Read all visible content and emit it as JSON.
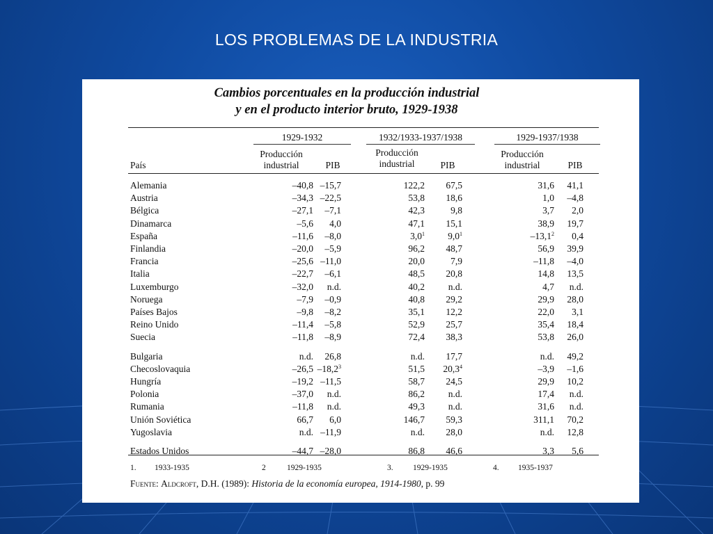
{
  "slide": {
    "title": "LOS PROBLEMAS DE LA INDUSTRIA"
  },
  "table": {
    "caption_line1": "Cambios porcentuales en la producción industrial",
    "caption_line2": "y en el producto interior bruto, 1929-1938",
    "groups": [
      "1929-1932",
      "1932/1933-1937/1938",
      "1929-1937/1938"
    ],
    "col_pais": "País",
    "col_prod_line1": "Producción",
    "col_prod_line2": "industrial",
    "col_pib": "PIB",
    "rows": [
      {
        "country": "Alemania",
        "v": [
          "–40,8",
          "–15,7",
          "122,2",
          "67,5",
          "31,6",
          "41,1"
        ],
        "s": [
          "",
          "",
          "",
          "",
          "",
          ""
        ]
      },
      {
        "country": "Austria",
        "v": [
          "–34,3",
          "–22,5",
          "53,8",
          "18,6",
          "1,0",
          "–4,8"
        ],
        "s": [
          "",
          "",
          "",
          "",
          "",
          ""
        ]
      },
      {
        "country": "Bélgica",
        "v": [
          "–27,1",
          "–7,1",
          "42,3",
          "9,8",
          "3,7",
          "2,0"
        ],
        "s": [
          "",
          "",
          "",
          "",
          "",
          ""
        ]
      },
      {
        "country": "Dinamarca",
        "v": [
          "–5,6",
          "4,0",
          "47,1",
          "15,1",
          "38,9",
          "19,7"
        ],
        "s": [
          "",
          "",
          "",
          "",
          "",
          ""
        ]
      },
      {
        "country": "España",
        "v": [
          "–11,6",
          "–8,0",
          "3,0",
          "9,0",
          "–13,1",
          "0,4"
        ],
        "s": [
          "",
          "",
          "1",
          "1",
          "2",
          ""
        ]
      },
      {
        "country": "Finlandia",
        "v": [
          "–20,0",
          "–5,9",
          "96,2",
          "48,7",
          "56,9",
          "39,9"
        ],
        "s": [
          "",
          "",
          "",
          "",
          "",
          ""
        ]
      },
      {
        "country": "Francia",
        "v": [
          "–25,6",
          "–11,0",
          "20,0",
          "7,9",
          "–11,8",
          "–4,0"
        ],
        "s": [
          "",
          "",
          "",
          "",
          "",
          ""
        ]
      },
      {
        "country": "Italia",
        "v": [
          "–22,7",
          "–6,1",
          "48,5",
          "20,8",
          "14,8",
          "13,5"
        ],
        "s": [
          "",
          "",
          "",
          "",
          "",
          ""
        ]
      },
      {
        "country": "Luxemburgo",
        "v": [
          "–32,0",
          "n.d.",
          "40,2",
          "n.d.",
          "4,7",
          "n.d."
        ],
        "s": [
          "",
          "",
          "",
          "",
          "",
          ""
        ]
      },
      {
        "country": "Noruega",
        "v": [
          "–7,9",
          "–0,9",
          "40,8",
          "29,2",
          "29,9",
          "28,0"
        ],
        "s": [
          "",
          "",
          "",
          "",
          "",
          ""
        ]
      },
      {
        "country": "Países Bajos",
        "v": [
          "–9,8",
          "–8,2",
          "35,1",
          "12,2",
          "22,0",
          "3,1"
        ],
        "s": [
          "",
          "",
          "",
          "",
          "",
          ""
        ]
      },
      {
        "country": "Reino Unido",
        "v": [
          "–11,4",
          "–5,8",
          "52,9",
          "25,7",
          "35,4",
          "18,4"
        ],
        "s": [
          "",
          "",
          "",
          "",
          "",
          ""
        ]
      },
      {
        "country": "Suecia",
        "v": [
          "–11,8",
          "–8,9",
          "72,4",
          "38,3",
          "53,8",
          "26,0"
        ],
        "s": [
          "",
          "",
          "",
          "",
          "",
          ""
        ]
      },
      {
        "country": "Bulgaria",
        "v": [
          "n.d.",
          "26,8",
          "n.d.",
          "17,7",
          "n.d.",
          "49,2"
        ],
        "s": [
          "",
          "",
          "",
          "",
          "",
          ""
        ]
      },
      {
        "country": "Checoslovaquia",
        "v": [
          "–26,5",
          "–18,2",
          "51,5",
          "20,3",
          "–3,9",
          "–1,6"
        ],
        "s": [
          "",
          "3",
          "",
          "4",
          "",
          ""
        ]
      },
      {
        "country": "Hungría",
        "v": [
          "–19,2",
          "–11,5",
          "58,7",
          "24,5",
          "29,9",
          "10,2"
        ],
        "s": [
          "",
          "",
          "",
          "",
          "",
          ""
        ]
      },
      {
        "country": "Polonia",
        "v": [
          "–37,0",
          "n.d.",
          "86,2",
          "n.d.",
          "17,4",
          "n.d."
        ],
        "s": [
          "",
          "",
          "",
          "",
          "",
          ""
        ]
      },
      {
        "country": "Rumania",
        "v": [
          "–11,8",
          "n.d.",
          "49,3",
          "n.d.",
          "31,6",
          "n.d."
        ],
        "s": [
          "",
          "",
          "",
          "",
          "",
          ""
        ]
      },
      {
        "country": "Unión Soviética",
        "v": [
          "66,7",
          "6,0",
          "146,7",
          "59,3",
          "311,1",
          "70,2"
        ],
        "s": [
          "",
          "",
          "",
          "",
          "",
          ""
        ]
      },
      {
        "country": "Yugoslavia",
        "v": [
          "n.d.",
          "–11,9",
          "n.d.",
          "28,0",
          "n.d.",
          "12,8"
        ],
        "s": [
          "",
          "",
          "",
          "",
          "",
          ""
        ]
      },
      {
        "country": "Estados Unidos",
        "v": [
          "–44,7",
          "–28,0",
          "86,8",
          "46,6",
          "3,3",
          "5,6"
        ],
        "s": [
          "",
          "",
          "",
          "",
          "",
          ""
        ]
      }
    ],
    "footnotes": [
      {
        "num": "1.",
        "text": "1933-1935"
      },
      {
        "num": "2",
        "text": "1929-1935"
      },
      {
        "num": "3.",
        "text": "1929-1935"
      },
      {
        "num": "4.",
        "text": "1935-1937"
      }
    ],
    "source": {
      "label": "Fuente:",
      "author": "Aldcroft",
      "rest": ", D.H. (1989): ",
      "book": "Historia de la economía europea, 1914-1980",
      "page": ", p. 99"
    }
  }
}
